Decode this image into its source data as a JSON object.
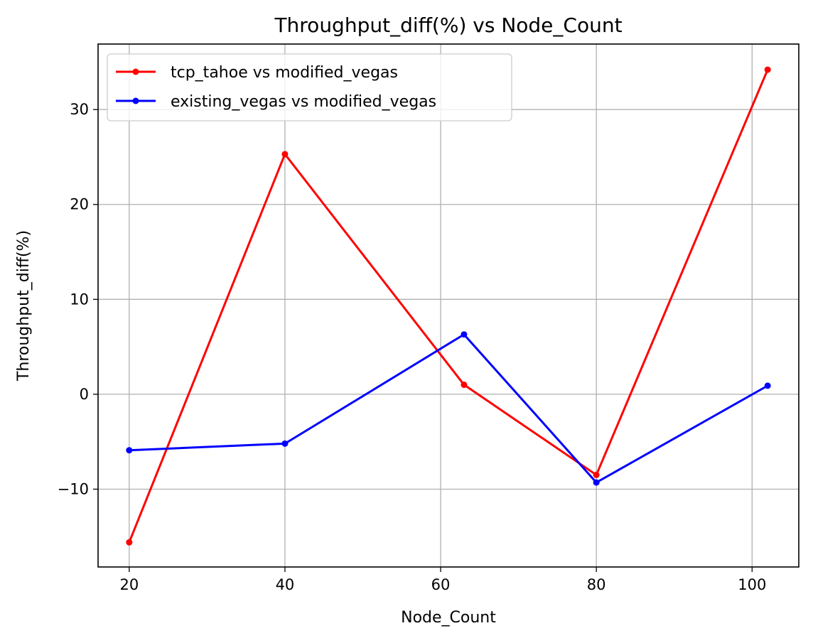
{
  "chart_data": {
    "type": "line",
    "title": "Throughput_diff(%) vs Node_Count",
    "xlabel": "Node_Count",
    "ylabel": "Throughput_diff(%)",
    "xlim": [
      16,
      106
    ],
    "ylim": [
      -18.2,
      36.9
    ],
    "xticks": [
      20,
      40,
      60,
      80,
      100
    ],
    "xtick_labels": [
      "20",
      "40",
      "60",
      "80",
      "100"
    ],
    "yticks": [
      -10,
      0,
      10,
      20,
      30
    ],
    "ytick_labels": [
      "−10",
      "0",
      "10",
      "20",
      "30"
    ],
    "grid": true,
    "legend_position": "upper-left",
    "series": [
      {
        "name": "tcp_tahoe vs modified_vegas",
        "color": "#ff0000",
        "marker": "circle",
        "x": [
          20,
          40,
          63,
          80,
          102
        ],
        "y": [
          -15.6,
          25.3,
          1.0,
          -8.5,
          34.2
        ]
      },
      {
        "name": "existing_vegas vs modified_vegas",
        "color": "#0000ff",
        "marker": "circle",
        "x": [
          20,
          40,
          63,
          80,
          102
        ],
        "y": [
          -5.9,
          -5.2,
          6.3,
          -9.3,
          0.9
        ]
      }
    ]
  }
}
